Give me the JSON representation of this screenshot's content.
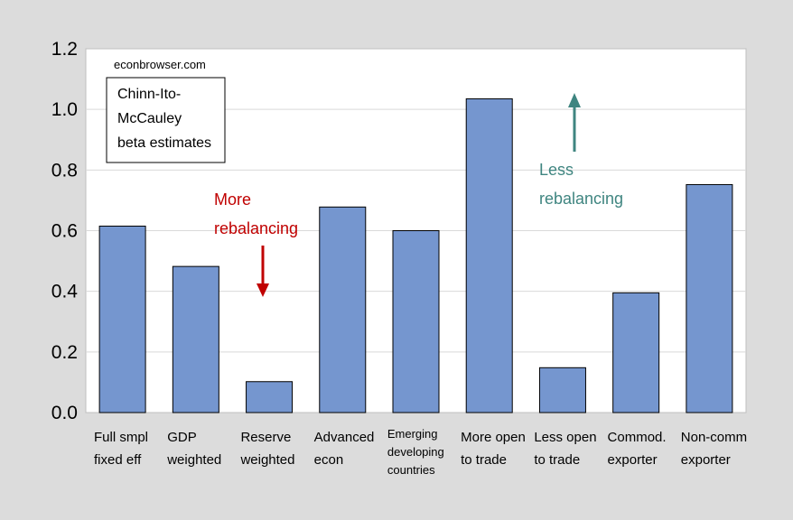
{
  "chart_data": {
    "type": "bar",
    "categories": [
      [
        "Full smpl",
        "fixed eff"
      ],
      [
        "GDP",
        "weighted"
      ],
      [
        "Reserve",
        "weighted"
      ],
      [
        "Advanced",
        "econ"
      ],
      [
        "Emerging",
        "developing",
        "countries"
      ],
      [
        "More open",
        "to trade"
      ],
      [
        "Less open",
        "to trade"
      ],
      [
        "Commod.",
        "exporter"
      ],
      [
        "Non-comm",
        "exporter"
      ]
    ],
    "values": [
      0.615,
      0.482,
      0.102,
      0.678,
      0.6,
      1.035,
      0.148,
      0.395,
      0.752
    ],
    "ylim": [
      0,
      1.2
    ],
    "yticks": [
      "0.0",
      "0.2",
      "0.4",
      "0.6",
      "0.8",
      "1.0",
      "1.2"
    ],
    "bar_color": "#7596cf",
    "grid": true,
    "title": "",
    "xlabel": "",
    "ylabel": ""
  },
  "watermark": "econbrowser.com",
  "notebox": [
    "Chinn-Ito-",
    "McCauley",
    "beta estimates"
  ],
  "annotations": {
    "more": {
      "lines": [
        "More",
        "rebalancing"
      ],
      "color": "#c00000"
    },
    "less": {
      "lines": [
        "Less",
        "rebalancing"
      ],
      "color": "#3f8580"
    }
  }
}
